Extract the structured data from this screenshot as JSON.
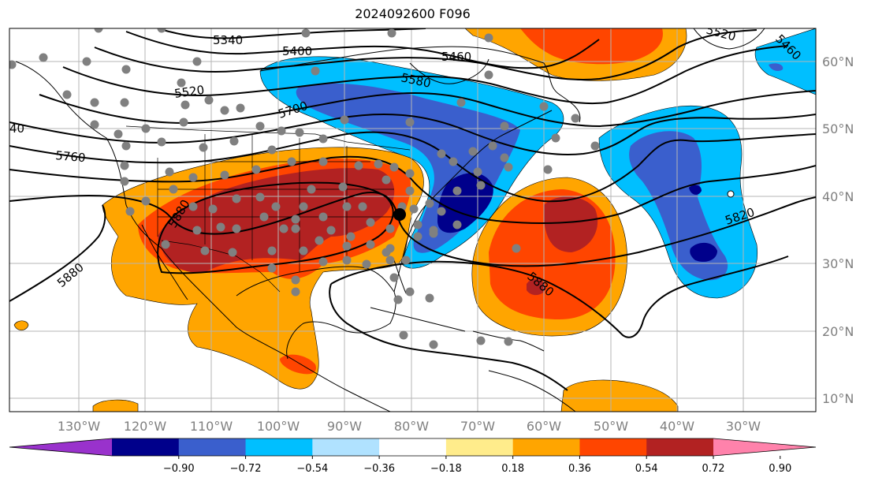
{
  "title": "2024092600 F096",
  "map": {
    "lon_labels": [
      "130°W",
      "120°W",
      "110°W",
      "100°W",
      "90°W",
      "80°W",
      "70°W",
      "60°W",
      "50°W",
      "40°W",
      "30°W"
    ],
    "lat_labels": [
      "60°N",
      "50°N",
      "40°N",
      "30°N",
      "20°N",
      "10°N"
    ],
    "contour_labels": [
      "5340",
      "5400",
      "5460",
      "5520",
      "5580",
      "5700",
      "5760",
      "5880",
      "5880",
      "5880",
      "5820",
      "5520",
      "5460",
      "40"
    ]
  },
  "colorbar": {
    "ticks": [
      "−0.90",
      "−0.72",
      "−0.54",
      "−0.36",
      "−0.18",
      "0.18",
      "0.36",
      "0.54",
      "0.72",
      "0.90"
    ],
    "colors": [
      "#9932cc",
      "#00008b",
      "#3a5fcd",
      "#00bfff",
      "#b0e2ff",
      "#ffffff",
      "#ffec8b",
      "#ffa500",
      "#ff4500",
      "#b22222",
      "#ff82ab"
    ]
  },
  "colors": {
    "dark_red": "#b22222",
    "orange_red": "#ff4500",
    "orange": "#ffa500",
    "deep_sky": "#00bfff",
    "royal_blue": "#3a5fcd",
    "navy": "#00008b",
    "dot": "#808080"
  }
}
